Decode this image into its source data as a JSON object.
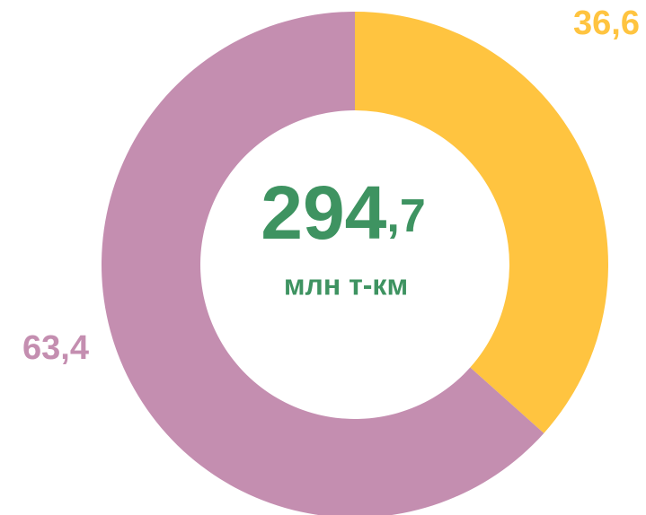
{
  "chart_data": {
    "type": "donut",
    "categories": [
      "36,6",
      "63,4"
    ],
    "values": [
      36.6,
      63.4
    ],
    "value_labels": [
      "36,6",
      "63,4"
    ],
    "colors": [
      "#ffc440",
      "#c48eb0"
    ],
    "center_text": [
      "294",
      ",7"
    ],
    "center_subtext": "млн т-км",
    "center_color": "#3e9361"
  }
}
